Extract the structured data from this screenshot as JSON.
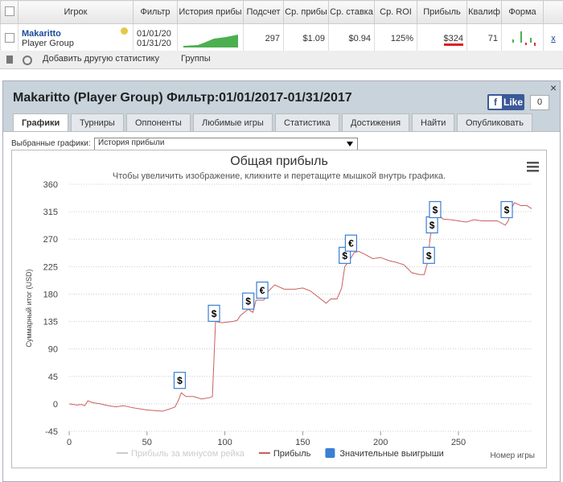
{
  "table": {
    "headers": [
      "Игрок",
      "Фильтр",
      "История прибы",
      "Подсчет",
      "Ср. прибы",
      "Ср. ставка",
      "Ср. ROI",
      "Прибыль",
      "Квалиф",
      "Форма"
    ],
    "rows": [
      [
        "Makaritto",
        "Player Group",
        "01/01/20",
        "01/31/20",
        "297",
        "$1.09",
        "$0.94",
        "125%",
        "$324",
        "71",
        "x"
      ]
    ]
  },
  "toolbar": {
    "add": "Добавить другую статистику",
    "groups": "Группы"
  },
  "panel": {
    "title": "Makaritto (Player Group) Фильтр:01/01/2017-01/31/2017",
    "fb_icon": "f",
    "like": "Like",
    "like_count": "0",
    "close": "×",
    "tabs": [
      "Графики",
      "Турниры",
      "Оппоненты",
      "Любимые игры",
      "Статистика",
      "Достижения",
      "Найти",
      "Опубликовать"
    ],
    "select_label": "Выбранные графики:",
    "select_value": "История прибыли"
  },
  "chart_data": {
    "type": "line",
    "title": "Общая прибыль",
    "subtitle": "Чтобы увеличить изображение, кликните и перетащите мышкой внутрь графика.",
    "y_label": "Суммарный итог (USD)",
    "x_label": "Номер игры",
    "xlim": [
      0,
      297
    ],
    "ylim": [
      -45,
      360
    ],
    "xticks": [
      0,
      50,
      100,
      150,
      200,
      250
    ],
    "yticks": [
      -45,
      0,
      45,
      90,
      135,
      180,
      225,
      270,
      315,
      360
    ],
    "grid": true,
    "x": [
      0,
      5,
      8,
      10,
      12,
      15,
      20,
      25,
      30,
      35,
      40,
      45,
      50,
      55,
      60,
      65,
      68,
      70,
      72,
      75,
      80,
      85,
      90,
      92,
      94,
      98,
      105,
      108,
      110,
      115,
      118,
      120,
      125,
      128,
      132,
      138,
      145,
      150,
      155,
      160,
      165,
      168,
      172,
      175,
      177,
      180,
      183,
      186,
      190,
      195,
      200,
      205,
      210,
      215,
      220,
      225,
      228,
      230,
      232,
      234,
      236,
      240,
      245,
      250,
      255,
      260,
      265,
      270,
      275,
      280,
      282,
      284,
      286,
      290,
      294,
      297
    ],
    "series": [
      {
        "name": "Прибыль за минусом рейка",
        "color": "#cccccc",
        "visible": false
      },
      {
        "name": "Прибыль",
        "color": "#c9605e",
        "visible": true,
        "values": [
          0,
          -2,
          -1,
          -3,
          5,
          2,
          0,
          -3,
          -5,
          -3,
          -6,
          -8,
          -10,
          -11,
          -12,
          -8,
          -5,
          5,
          18,
          12,
          12,
          8,
          10,
          12,
          135,
          133,
          135,
          137,
          145,
          155,
          150,
          170,
          170,
          185,
          195,
          188,
          188,
          190,
          185,
          175,
          165,
          172,
          172,
          190,
          225,
          235,
          248,
          250,
          245,
          238,
          240,
          235,
          232,
          228,
          215,
          212,
          212,
          230,
          275,
          300,
          315,
          303,
          302,
          300,
          298,
          302,
          300,
          300,
          300,
          293,
          300,
          320,
          330,
          325,
          325,
          320
        ]
      }
    ],
    "flags": {
      "name": "Значительные выигрыши",
      "color": "#3a7fd5",
      "points": [
        {
          "x": 71,
          "y": 20,
          "label": "$"
        },
        {
          "x": 93,
          "y": 130,
          "label": "$"
        },
        {
          "x": 115,
          "y": 150,
          "label": "$"
        },
        {
          "x": 124,
          "y": 168,
          "label": "€"
        },
        {
          "x": 177,
          "y": 225,
          "label": "$"
        },
        {
          "x": 181,
          "y": 245,
          "label": "€"
        },
        {
          "x": 231,
          "y": 225,
          "label": "$"
        },
        {
          "x": 233,
          "y": 275,
          "label": "$"
        },
        {
          "x": 235,
          "y": 300,
          "label": "$"
        },
        {
          "x": 281,
          "y": 300,
          "label": "$"
        }
      ]
    }
  }
}
